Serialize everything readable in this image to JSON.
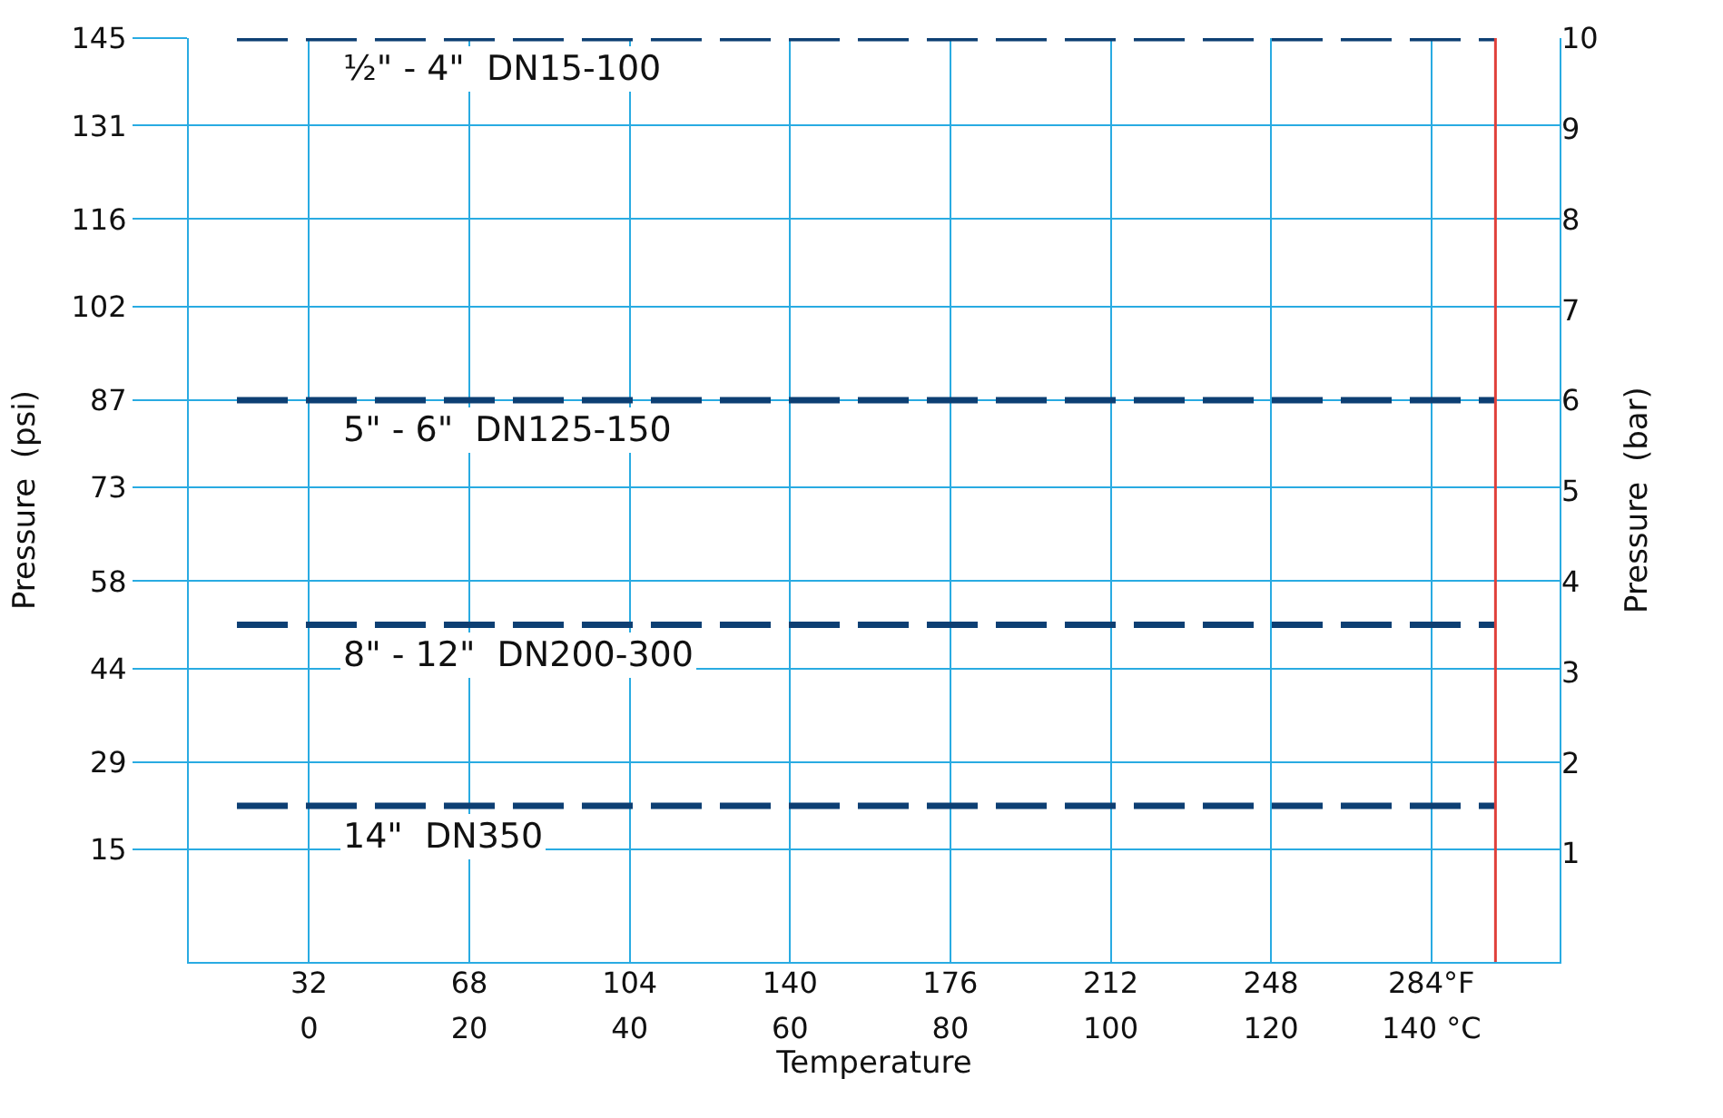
{
  "chart_data": {
    "type": "line",
    "xlabel": "Temperature",
    "ylabel": "Pressure  (psi)",
    "y2label": "Pressure  (bar)",
    "x": [
      -9,
      148
    ],
    "series": [
      {
        "name": "½\" - 4\"  DN15-100",
        "color": "#0d3f73",
        "values": [
          145,
          145
        ]
      },
      {
        "name": "5\" - 6\"  DN125-150",
        "color": "#0d3f73",
        "values": [
          87,
          87
        ]
      },
      {
        "name": "8\" - 12\"  DN200-300",
        "color": "#0d3f73",
        "values": [
          51,
          51
        ]
      },
      {
        "name": "14\"  DN350",
        "color": "#0d3f73",
        "values": [
          22,
          22
        ]
      }
    ],
    "xlim": [
      -15,
      156
    ],
    "xticks": [
      0,
      20,
      40,
      60,
      80,
      100,
      120,
      {
        "value": 140,
        "label": "140 °C"
      }
    ],
    "x2lim": [
      5,
      312.8
    ],
    "x2ticks": [
      32,
      68,
      104,
      140,
      176,
      212,
      248,
      {
        "value": 284,
        "label": "284°F"
      }
    ],
    "ylim": [
      -3,
      145
    ],
    "yticks": [
      15,
      29,
      44,
      58,
      73,
      87,
      102,
      116,
      131,
      145
    ],
    "y2lim": [
      -0.2,
      10
    ],
    "y2ticks": [
      1,
      2,
      3,
      4,
      5,
      6,
      7,
      8,
      9,
      10
    ],
    "ref_lines": [
      {
        "axis": "x",
        "value": 148,
        "color": "#e0403a",
        "line_style": "solid"
      }
    ],
    "grid": true,
    "legend": false,
    "marker": "none",
    "line_style": "dashed"
  }
}
